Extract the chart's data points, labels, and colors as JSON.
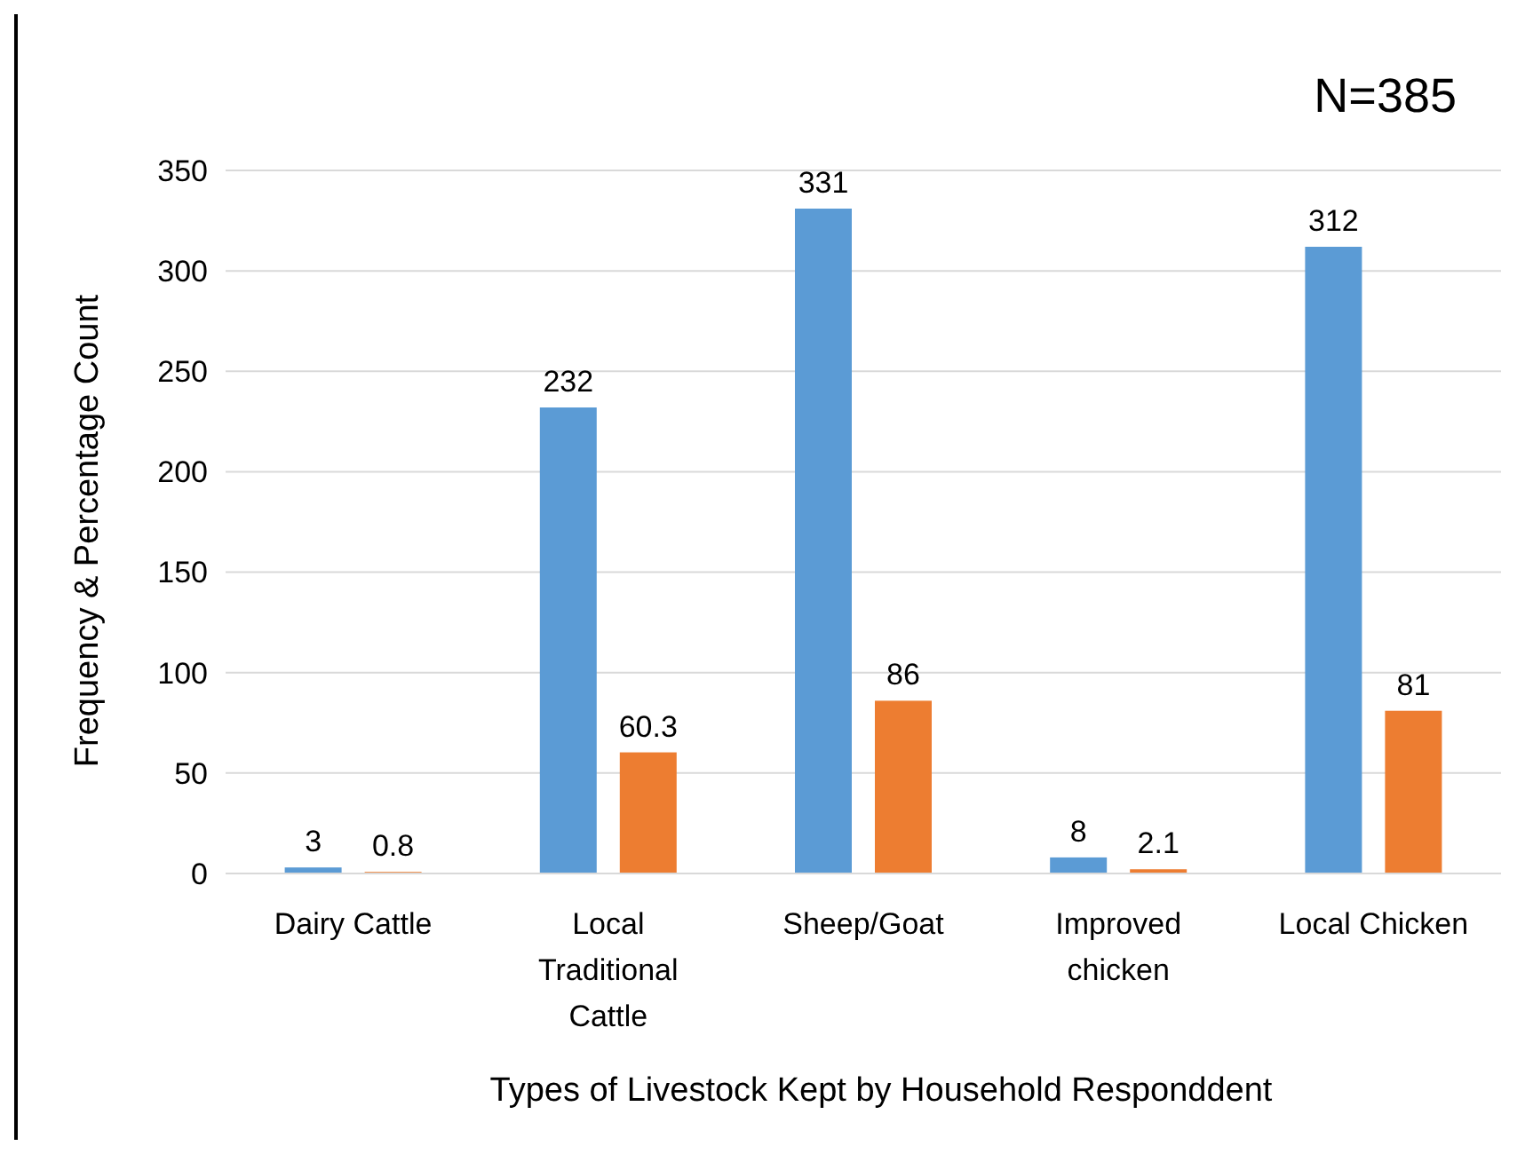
{
  "chart_data": {
    "type": "bar",
    "xlabel": "Types of Livestock Kept by Household Responddent",
    "ylabel": "Frequency & Percentage Count",
    "annotations": [
      "N=385"
    ],
    "categories": [
      "Dairy Cattle",
      "Local Traditional Cattle",
      "Sheep/Goat",
      "Improved chicken",
      "Local Chicken"
    ],
    "series": [
      {
        "color": "#5b9bd5",
        "values": [
          3,
          232,
          331,
          8,
          312
        ]
      },
      {
        "color": "#ed7d31",
        "values": [
          0.8,
          60.3,
          86,
          2.1,
          81
        ]
      }
    ],
    "ylim": [
      0,
      350
    ],
    "yticks": [
      0,
      50,
      100,
      150,
      200,
      250,
      300,
      350
    ],
    "grid": "y",
    "data_labels": true
  }
}
